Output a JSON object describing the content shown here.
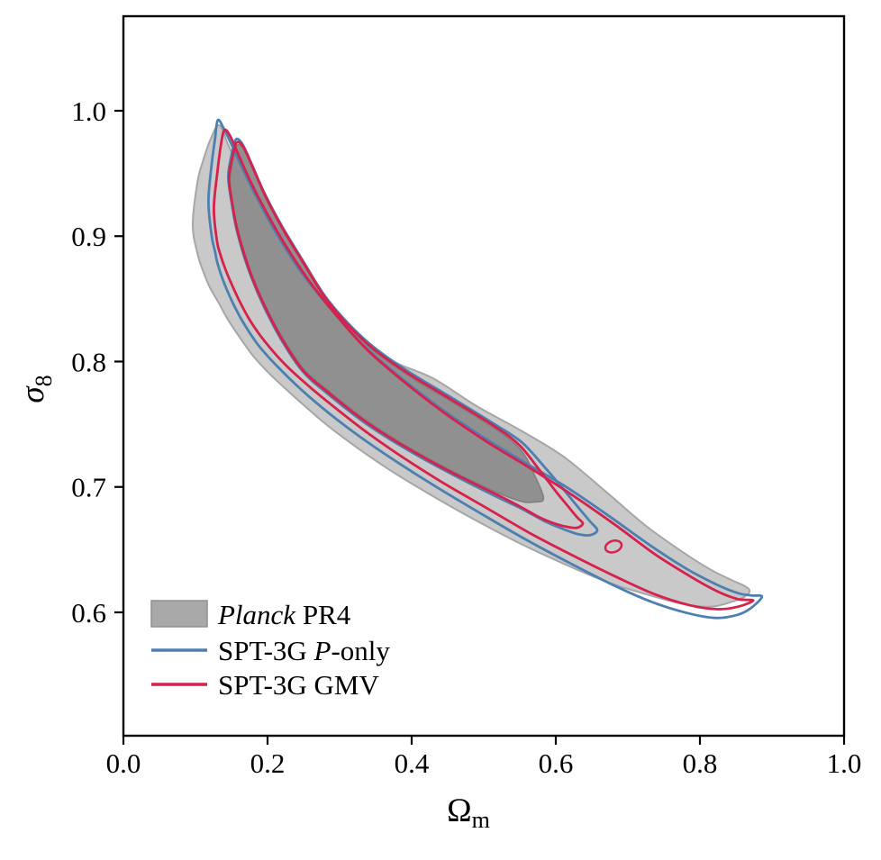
{
  "chart_data": {
    "type": "contour",
    "title": "",
    "xlabel": {
      "base": "Ω",
      "sub": "m"
    },
    "ylabel": {
      "base": "σ",
      "sub": "8"
    },
    "xlim": [
      0.0,
      1.0
    ],
    "ylim": [
      0.5016,
      1.0754
    ],
    "x_ticks": [
      0.0,
      0.2,
      0.4,
      0.6,
      0.8,
      1.0
    ],
    "y_ticks": [
      1.0,
      0.9,
      0.8,
      0.7,
      0.6
    ],
    "grid": false,
    "legend_position": "lower left",
    "colors": {
      "planck_fill_outer": "#c9c9c9",
      "planck_fill_inner": "#909090",
      "planck_edge_outer": "#a6a6a6",
      "planck_edge_inner": "#7f7f7f",
      "spt_p_only": "#4d80b0",
      "spt_gmv": "#d7214d",
      "legend_swatch_gray": "#a9a9a9",
      "axes": "#000000"
    },
    "series": [
      {
        "name": "Planck PR4",
        "kind": "filled_contour",
        "legend_segments": [
          {
            "t": "Planck",
            "i": true
          },
          {
            "t": " PR4",
            "i": false
          }
        ],
        "outer": [
          [
            0.0963,
            0.909,
            0.909
          ],
          [
            0.103,
            0.8855,
            0.944
          ],
          [
            0.111,
            0.8715,
            0.961
          ],
          [
            0.12,
            0.859,
            0.976
          ],
          [
            0.1325,
            0.8465,
            0.9885
          ],
          [
            0.145,
            0.8335,
            0.9735
          ],
          [
            0.16,
            0.8205,
            0.954
          ],
          [
            0.18,
            0.8045,
            0.9325
          ],
          [
            0.205,
            0.789,
            0.9075
          ],
          [
            0.24,
            0.7705,
            0.8775
          ],
          [
            0.28,
            0.7505,
            0.851
          ],
          [
            0.325,
            0.731,
            0.8195
          ],
          [
            0.375,
            0.7115,
            0.8
          ],
          [
            0.43,
            0.6925,
            0.7865
          ],
          [
            0.49,
            0.673,
            0.7645
          ],
          [
            0.55,
            0.655,
            0.7455
          ],
          [
            0.61,
            0.639,
            0.7245
          ],
          [
            0.67,
            0.6245,
            0.696
          ],
          [
            0.725,
            0.6145,
            0.669
          ],
          [
            0.775,
            0.6068,
            0.6485
          ],
          [
            0.815,
            0.6045,
            0.634
          ],
          [
            0.845,
            0.6085,
            0.6255
          ],
          [
            0.862,
            0.6125,
            0.621
          ],
          [
            0.869,
            0.617,
            0.617
          ]
        ],
        "inner": [
          [
            0.148,
            0.9435,
            0.9435
          ],
          [
            0.152,
            0.9245,
            0.96
          ],
          [
            0.158,
            0.9075,
            0.9725
          ],
          [
            0.167,
            0.889,
            0.969
          ],
          [
            0.18,
            0.867,
            0.953
          ],
          [
            0.198,
            0.8435,
            0.93
          ],
          [
            0.222,
            0.818,
            0.904
          ],
          [
            0.251,
            0.7935,
            0.8765
          ],
          [
            0.286,
            0.776,
            0.845
          ],
          [
            0.336,
            0.7535,
            0.814
          ],
          [
            0.392,
            0.733,
            0.79
          ],
          [
            0.455,
            0.713,
            0.768
          ],
          [
            0.517,
            0.696,
            0.746
          ],
          [
            0.552,
            0.6885,
            0.729
          ],
          [
            0.57,
            0.688,
            0.71
          ],
          [
            0.583,
            0.691,
            0.691
          ]
        ]
      },
      {
        "name": "SPT-3G P-only",
        "kind": "line_contour",
        "legend_segments": [
          {
            "t": "SPT-3G ",
            "i": false
          },
          {
            "t": "P",
            "i": true
          },
          {
            "t": "-only",
            "i": false
          }
        ],
        "outer": [
          [
            0.118,
            0.9275,
            0.9275
          ],
          [
            0.1225,
            0.9,
            0.9575
          ],
          [
            0.127,
            0.888,
            0.977
          ],
          [
            0.131,
            0.8775,
            0.9925
          ],
          [
            0.1395,
            0.863,
            0.9855
          ],
          [
            0.152,
            0.8465,
            0.9705
          ],
          [
            0.168,
            0.8295,
            0.9505
          ],
          [
            0.188,
            0.8125,
            0.9275
          ],
          [
            0.213,
            0.7965,
            0.9015
          ],
          [
            0.247,
            0.7775,
            0.871
          ],
          [
            0.287,
            0.758,
            0.8425
          ],
          [
            0.332,
            0.7385,
            0.8135
          ],
          [
            0.382,
            0.719,
            0.7885
          ],
          [
            0.437,
            0.699,
            0.764
          ],
          [
            0.497,
            0.6785,
            0.7405
          ],
          [
            0.557,
            0.6585,
            0.7195
          ],
          [
            0.617,
            0.64,
            0.699
          ],
          [
            0.677,
            0.6225,
            0.6755
          ],
          [
            0.732,
            0.6085,
            0.653
          ],
          [
            0.782,
            0.5995,
            0.6345
          ],
          [
            0.822,
            0.5955,
            0.6225
          ],
          [
            0.852,
            0.598,
            0.6155
          ],
          [
            0.871,
            0.6035,
            0.6135
          ],
          [
            0.886,
            0.6125,
            0.6125
          ]
        ],
        "inner": [
          [
            0.1455,
            0.9475,
            0.9475
          ],
          [
            0.15,
            0.927,
            0.9645
          ],
          [
            0.156,
            0.908,
            0.977
          ],
          [
            0.165,
            0.8885,
            0.9735
          ],
          [
            0.178,
            0.8665,
            0.9575
          ],
          [
            0.196,
            0.8425,
            0.934
          ],
          [
            0.22,
            0.8165,
            0.908
          ],
          [
            0.249,
            0.792,
            0.8805
          ],
          [
            0.284,
            0.774,
            0.849
          ],
          [
            0.334,
            0.7515,
            0.818
          ],
          [
            0.39,
            0.731,
            0.794
          ],
          [
            0.453,
            0.711,
            0.772
          ],
          [
            0.515,
            0.693,
            0.75
          ],
          [
            0.553,
            0.6825,
            0.7355
          ],
          [
            0.585,
            0.6725,
            0.7155
          ],
          [
            0.61,
            0.6665,
            0.6985
          ],
          [
            0.63,
            0.6625,
            0.6845
          ],
          [
            0.6475,
            0.6615,
            0.6725
          ],
          [
            0.6575,
            0.6655,
            0.6655
          ]
        ]
      },
      {
        "name": "SPT-3G GMV",
        "kind": "line_contour",
        "legend_segments": [
          {
            "t": "SPT-3G GMV",
            "i": false
          }
        ],
        "outer": [
          [
            0.1255,
            0.9215,
            0.9215
          ],
          [
            0.13,
            0.8955,
            0.949
          ],
          [
            0.135,
            0.8845,
            0.9715
          ],
          [
            0.14,
            0.876,
            0.9845
          ],
          [
            0.148,
            0.8645,
            0.98
          ],
          [
            0.16,
            0.8495,
            0.9645
          ],
          [
            0.176,
            0.8325,
            0.944
          ],
          [
            0.197,
            0.8155,
            0.9205
          ],
          [
            0.223,
            0.7985,
            0.8945
          ],
          [
            0.255,
            0.7815,
            0.8665
          ],
          [
            0.293,
            0.7635,
            0.8385
          ],
          [
            0.338,
            0.7435,
            0.8095
          ],
          [
            0.388,
            0.7235,
            0.7845
          ],
          [
            0.443,
            0.7035,
            0.76
          ],
          [
            0.503,
            0.6835,
            0.7365
          ],
          [
            0.563,
            0.6635,
            0.7155
          ],
          [
            0.623,
            0.6455,
            0.6935
          ],
          [
            0.683,
            0.6285,
            0.6695
          ],
          [
            0.737,
            0.6145,
            0.6465
          ],
          [
            0.787,
            0.6055,
            0.6285
          ],
          [
            0.825,
            0.6025,
            0.6165
          ],
          [
            0.853,
            0.6045,
            0.6105
          ],
          [
            0.874,
            0.6095,
            0.6095
          ]
        ],
        "inner": [
          [
            0.1465,
            0.9455,
            0.9455
          ],
          [
            0.151,
            0.9265,
            0.9625
          ],
          [
            0.157,
            0.9075,
            0.9745
          ],
          [
            0.166,
            0.8885,
            0.9715
          ],
          [
            0.179,
            0.8665,
            0.9555
          ],
          [
            0.197,
            0.843,
            0.932
          ],
          [
            0.221,
            0.817,
            0.906
          ],
          [
            0.25,
            0.7925,
            0.8785
          ],
          [
            0.285,
            0.775,
            0.847
          ],
          [
            0.335,
            0.7525,
            0.816
          ],
          [
            0.391,
            0.732,
            0.792
          ],
          [
            0.454,
            0.712,
            0.77
          ],
          [
            0.516,
            0.6945,
            0.748
          ],
          [
            0.55,
            0.6845,
            0.733
          ],
          [
            0.578,
            0.6755,
            0.713
          ],
          [
            0.6,
            0.6705,
            0.6965
          ],
          [
            0.617,
            0.668,
            0.6845
          ],
          [
            0.63,
            0.6675,
            0.6755
          ],
          [
            0.6375,
            0.671,
            0.671
          ]
        ],
        "island": {
          "cx": 0.68,
          "cy": 0.6525,
          "rx": 0.0115,
          "ry": 0.0045,
          "rot": -18
        }
      }
    ]
  }
}
